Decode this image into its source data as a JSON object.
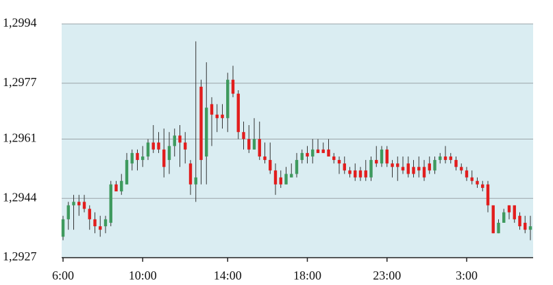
{
  "chart_data": {
    "type": "candlestick",
    "categories": [
      "6:00",
      null,
      null,
      null,
      null,
      null,
      null,
      null,
      null,
      null,
      null,
      null,
      null,
      null,
      null,
      "10:00",
      null,
      null,
      null,
      null,
      null,
      null,
      null,
      null,
      null,
      null,
      null,
      null,
      null,
      null,
      null,
      "14:00",
      null,
      null,
      null,
      null,
      null,
      null,
      null,
      null,
      null,
      null,
      null,
      null,
      null,
      null,
      "18:00",
      null,
      null,
      null,
      null,
      null,
      null,
      null,
      null,
      null,
      null,
      null,
      null,
      null,
      null,
      "23:00",
      null,
      null,
      null,
      null,
      null,
      null,
      null,
      null,
      null,
      null,
      null,
      null,
      null,
      null,
      "3:00",
      null,
      null,
      null,
      null,
      null,
      null,
      null,
      null,
      null,
      null,
      null,
      null
    ],
    "open": [
      1.2933,
      1.2938,
      1.2942,
      1.2943,
      1.2943,
      1.2941,
      1.2938,
      1.2936,
      1.2936,
      1.2937,
      1.2948,
      1.2946,
      1.2948,
      1.2954,
      1.2957,
      1.2955,
      1.2956,
      1.296,
      1.296,
      1.2958,
      1.2955,
      1.2959,
      1.2962,
      1.296,
      1.2954,
      1.2948,
      1.2976,
      1.2956,
      1.2971,
      1.2968,
      1.2968,
      1.2967,
      1.2978,
      1.2974,
      1.2963,
      1.2961,
      1.2958,
      1.2961,
      1.2956,
      1.2955,
      1.2952,
      1.295,
      1.2948,
      1.295,
      1.2951,
      1.2955,
      1.2957,
      1.2956,
      1.2958,
      1.2958,
      1.2958,
      1.2956,
      1.2955,
      1.2954,
      1.2952,
      1.2952,
      1.2952,
      1.2952,
      1.295,
      1.2955,
      1.2954,
      1.2958,
      1.2954,
      1.2954,
      1.2953,
      1.2954,
      1.2953,
      1.2953,
      1.2953,
      1.2954,
      1.2952,
      1.2955,
      1.2956,
      1.2956,
      1.2955,
      1.2953,
      1.2952,
      1.295,
      1.2949,
      1.2948,
      1.2948,
      1.2942,
      1.2934,
      1.2937,
      1.2942,
      1.2942,
      1.2939,
      1.2937,
      1.2935
    ],
    "high": [
      1.2939,
      1.2943,
      1.2945,
      1.2945,
      1.2945,
      1.2942,
      1.294,
      1.2939,
      1.2939,
      1.2949,
      1.2949,
      1.2951,
      1.2957,
      1.2958,
      1.2958,
      1.2959,
      1.2961,
      1.2965,
      1.2963,
      1.2964,
      1.2963,
      1.2964,
      1.2965,
      1.2963,
      1.2955,
      1.2989,
      1.2978,
      1.2983,
      1.2973,
      1.2971,
      1.2971,
      1.298,
      1.2982,
      1.2975,
      1.2966,
      1.2965,
      1.2967,
      1.2966,
      1.296,
      1.296,
      1.2954,
      1.2952,
      1.2953,
      1.2954,
      1.2957,
      1.2958,
      1.2959,
      1.2961,
      1.2961,
      1.296,
      1.2961,
      1.2957,
      1.2956,
      1.2956,
      1.2953,
      1.2954,
      1.2953,
      1.2955,
      1.2956,
      1.2959,
      1.2959,
      1.2959,
      1.2955,
      1.2956,
      1.2956,
      1.2956,
      1.2955,
      1.2956,
      1.2955,
      1.2956,
      1.2956,
      1.2957,
      1.2959,
      1.2957,
      1.2956,
      1.2954,
      1.2953,
      1.2952,
      1.295,
      1.2949,
      1.2949,
      1.2942,
      1.2938,
      1.2941,
      1.2942,
      1.2942,
      1.294,
      1.2939,
      1.2939
    ],
    "low": [
      1.2932,
      1.2935,
      1.2935,
      1.2939,
      1.294,
      1.2935,
      1.2934,
      1.2933,
      1.2934,
      1.2936,
      1.2946,
      1.2945,
      1.2948,
      1.2952,
      1.2952,
      1.2953,
      1.2955,
      1.2957,
      1.2957,
      1.295,
      1.2951,
      1.2956,
      1.2953,
      1.2954,
      1.2945,
      1.2943,
      1.2948,
      1.2948,
      1.2959,
      1.2963,
      1.2964,
      1.2963,
      1.2973,
      1.2961,
      1.2958,
      1.2957,
      1.2958,
      1.2955,
      1.2954,
      1.2951,
      1.2945,
      1.2947,
      1.2948,
      1.295,
      1.295,
      1.2954,
      1.2954,
      1.2954,
      1.2957,
      1.2957,
      1.2956,
      1.2954,
      1.2951,
      1.2951,
      1.295,
      1.2949,
      1.2949,
      1.2949,
      1.2949,
      1.2953,
      1.2953,
      1.2953,
      1.295,
      1.2949,
      1.2951,
      1.295,
      1.295,
      1.295,
      1.2949,
      1.2951,
      1.2951,
      1.2954,
      1.2954,
      1.2954,
      1.2952,
      1.2951,
      1.2949,
      1.2948,
      1.2947,
      1.2946,
      1.294,
      1.2934,
      1.2934,
      1.2937,
      1.2938,
      1.2937,
      1.2935,
      1.2934,
      1.2932
    ],
    "close": [
      1.2938,
      1.2942,
      1.2943,
      1.2942,
      1.2941,
      1.2938,
      1.2936,
      1.2935,
      1.2938,
      1.2948,
      1.2946,
      1.2949,
      1.2955,
      1.2957,
      1.2955,
      1.2956,
      1.296,
      1.2958,
      1.2958,
      1.2953,
      1.2959,
      1.2962,
      1.296,
      1.2958,
      1.2948,
      1.295,
      1.2955,
      1.297,
      1.2968,
      1.2967,
      1.2967,
      1.2978,
      1.2974,
      1.2963,
      1.2961,
      1.2958,
      1.2961,
      1.2956,
      1.2955,
      1.2952,
      1.2948,
      1.2948,
      1.2951,
      1.2951,
      1.2955,
      1.2957,
      1.2956,
      1.2958,
      1.2957,
      1.2957,
      1.2956,
      1.2955,
      1.2954,
      1.2952,
      1.2951,
      1.295,
      1.295,
      1.295,
      1.2955,
      1.2954,
      1.2958,
      1.2954,
      1.2953,
      1.2953,
      1.2952,
      1.2951,
      1.2951,
      1.2952,
      1.295,
      1.2952,
      1.2955,
      1.2956,
      1.2955,
      1.2955,
      1.2953,
      1.2952,
      1.295,
      1.2949,
      1.2948,
      1.2947,
      1.2942,
      1.2934,
      1.2937,
      1.294,
      1.294,
      1.2938,
      1.2936,
      1.2935,
      1.2936
    ],
    "up_color": "#3e9a5e",
    "down_color": "#e21d1d",
    "ylim": [
      1.2927,
      1.2994
    ],
    "yticks": [
      {
        "value": 1.2927,
        "label": "1,2927"
      },
      {
        "value": 1.2944,
        "label": "1,2944"
      },
      {
        "value": 1.2961,
        "label": "1,2961"
      },
      {
        "value": 1.2977,
        "label": "1,2977"
      },
      {
        "value": 1.2994,
        "label": "1,2994"
      }
    ],
    "grid": true
  }
}
